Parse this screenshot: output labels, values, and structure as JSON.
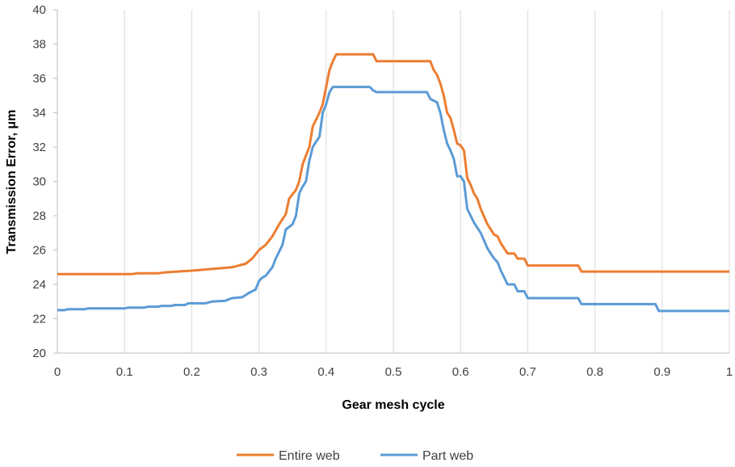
{
  "chart_data": {
    "type": "line",
    "title": "",
    "xlabel": "Gear mesh cycle",
    "ylabel": "Transmission Error, μm",
    "xlim": [
      0,
      1
    ],
    "ylim": [
      20,
      40
    ],
    "x_ticks": [
      "0",
      "0.1",
      "0.2",
      "0.3",
      "0.4",
      "0.5",
      "0.6",
      "0.7",
      "0.8",
      "0.9",
      "1"
    ],
    "y_ticks": [
      "20",
      "22",
      "24",
      "26",
      "28",
      "30",
      "32",
      "34",
      "36",
      "38",
      "40"
    ],
    "grid": "vertical",
    "legend_position": "bottom",
    "series": [
      {
        "name": "Entire web",
        "color": "#ED7D31",
        "points": [
          [
            0,
            24.6
          ],
          [
            0.11,
            24.6
          ],
          [
            0.12,
            24.65
          ],
          [
            0.15,
            24.65
          ],
          [
            0.16,
            24.7
          ],
          [
            0.2,
            24.8
          ],
          [
            0.23,
            24.9
          ],
          [
            0.26,
            25.0
          ],
          [
            0.28,
            25.2
          ],
          [
            0.29,
            25.5
          ],
          [
            0.3,
            26.0
          ],
          [
            0.31,
            26.3
          ],
          [
            0.32,
            26.8
          ],
          [
            0.33,
            27.5
          ],
          [
            0.34,
            28.1
          ],
          [
            0.345,
            29.0
          ],
          [
            0.355,
            29.5
          ],
          [
            0.36,
            30.0
          ],
          [
            0.365,
            31.0
          ],
          [
            0.37,
            31.5
          ],
          [
            0.375,
            32.0
          ],
          [
            0.38,
            33.2
          ],
          [
            0.39,
            34.0
          ],
          [
            0.395,
            34.5
          ],
          [
            0.4,
            35.5
          ],
          [
            0.405,
            36.5
          ],
          [
            0.41,
            37.0
          ],
          [
            0.415,
            37.4
          ],
          [
            0.47,
            37.4
          ],
          [
            0.475,
            37.0
          ],
          [
            0.555,
            37.0
          ],
          [
            0.56,
            36.5
          ],
          [
            0.565,
            36.2
          ],
          [
            0.57,
            35.7
          ],
          [
            0.575,
            35.0
          ],
          [
            0.58,
            34.0
          ],
          [
            0.585,
            33.7
          ],
          [
            0.59,
            33.0
          ],
          [
            0.595,
            32.2
          ],
          [
            0.6,
            32.1
          ],
          [
            0.605,
            31.8
          ],
          [
            0.61,
            30.2
          ],
          [
            0.615,
            29.8
          ],
          [
            0.62,
            29.3
          ],
          [
            0.625,
            29.0
          ],
          [
            0.63,
            28.4
          ],
          [
            0.64,
            27.5
          ],
          [
            0.65,
            26.9
          ],
          [
            0.655,
            26.8
          ],
          [
            0.66,
            26.4
          ],
          [
            0.67,
            25.8
          ],
          [
            0.68,
            25.8
          ],
          [
            0.685,
            25.5
          ],
          [
            0.695,
            25.5
          ],
          [
            0.7,
            25.1
          ],
          [
            0.775,
            25.1
          ],
          [
            0.78,
            24.75
          ],
          [
            1.0,
            24.75
          ]
        ]
      },
      {
        "name": "Part web",
        "color": "#5B9BD5",
        "points": [
          [
            0,
            22.5
          ],
          [
            0.01,
            22.5
          ],
          [
            0.015,
            22.55
          ],
          [
            0.04,
            22.55
          ],
          [
            0.045,
            22.6
          ],
          [
            0.1,
            22.6
          ],
          [
            0.105,
            22.65
          ],
          [
            0.13,
            22.65
          ],
          [
            0.135,
            22.7
          ],
          [
            0.15,
            22.7
          ],
          [
            0.155,
            22.75
          ],
          [
            0.17,
            22.75
          ],
          [
            0.175,
            22.8
          ],
          [
            0.19,
            22.8
          ],
          [
            0.195,
            22.9
          ],
          [
            0.22,
            22.9
          ],
          [
            0.23,
            23.0
          ],
          [
            0.25,
            23.05
          ],
          [
            0.26,
            23.2
          ],
          [
            0.275,
            23.25
          ],
          [
            0.285,
            23.5
          ],
          [
            0.295,
            23.7
          ],
          [
            0.3,
            24.2
          ],
          [
            0.305,
            24.4
          ],
          [
            0.31,
            24.5
          ],
          [
            0.32,
            25.0
          ],
          [
            0.325,
            25.5
          ],
          [
            0.33,
            25.9
          ],
          [
            0.335,
            26.3
          ],
          [
            0.34,
            27.2
          ],
          [
            0.35,
            27.5
          ],
          [
            0.355,
            28.0
          ],
          [
            0.36,
            29.3
          ],
          [
            0.365,
            29.7
          ],
          [
            0.37,
            30.0
          ],
          [
            0.375,
            31.2
          ],
          [
            0.38,
            32.0
          ],
          [
            0.385,
            32.3
          ],
          [
            0.39,
            32.6
          ],
          [
            0.395,
            34.0
          ],
          [
            0.4,
            34.5
          ],
          [
            0.405,
            35.2
          ],
          [
            0.41,
            35.5
          ],
          [
            0.465,
            35.5
          ],
          [
            0.47,
            35.3
          ],
          [
            0.475,
            35.2
          ],
          [
            0.55,
            35.2
          ],
          [
            0.555,
            34.8
          ],
          [
            0.565,
            34.6
          ],
          [
            0.57,
            34.0
          ],
          [
            0.575,
            33.0
          ],
          [
            0.58,
            32.2
          ],
          [
            0.585,
            31.8
          ],
          [
            0.59,
            31.3
          ],
          [
            0.595,
            30.3
          ],
          [
            0.6,
            30.3
          ],
          [
            0.605,
            30.0
          ],
          [
            0.61,
            28.4
          ],
          [
            0.615,
            28.0
          ],
          [
            0.62,
            27.6
          ],
          [
            0.63,
            27.0
          ],
          [
            0.64,
            26.1
          ],
          [
            0.645,
            25.8
          ],
          [
            0.65,
            25.5
          ],
          [
            0.655,
            25.3
          ],
          [
            0.66,
            24.8
          ],
          [
            0.665,
            24.4
          ],
          [
            0.67,
            24.0
          ],
          [
            0.68,
            24.0
          ],
          [
            0.685,
            23.6
          ],
          [
            0.695,
            23.6
          ],
          [
            0.7,
            23.2
          ],
          [
            0.775,
            23.2
          ],
          [
            0.78,
            22.85
          ],
          [
            0.89,
            22.85
          ],
          [
            0.895,
            22.45
          ],
          [
            1.0,
            22.45
          ]
        ]
      }
    ]
  }
}
